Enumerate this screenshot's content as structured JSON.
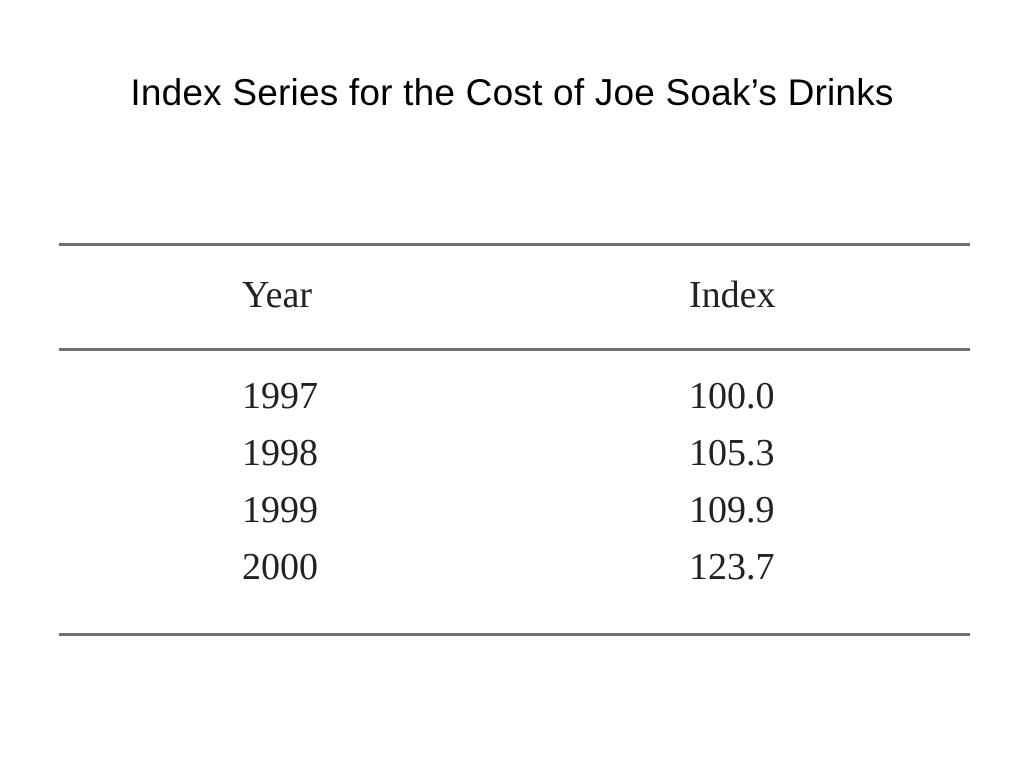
{
  "slide": {
    "title": "Index Series for the Cost of Joe Soak’s Drinks"
  },
  "table": {
    "headers": [
      "Year",
      "Index"
    ],
    "rows": [
      [
        "1997",
        "100.0"
      ],
      [
        "1998",
        "105.3"
      ],
      [
        "1999",
        "109.9"
      ],
      [
        "2000",
        "123.7"
      ]
    ]
  }
}
